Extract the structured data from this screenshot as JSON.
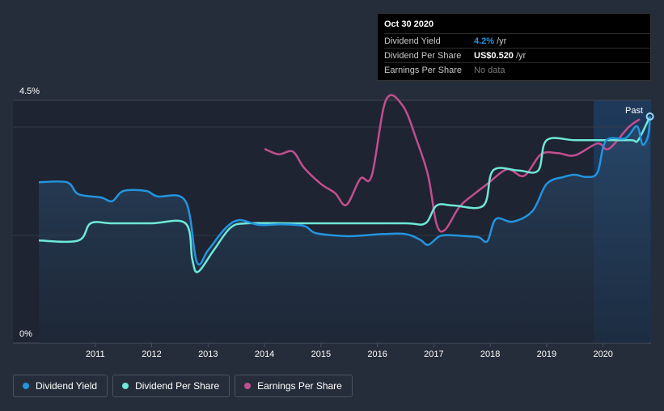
{
  "tooltip": {
    "date": "Oct 30 2020",
    "rows": [
      {
        "name": "Dividend Yield",
        "value": "4.2%",
        "unit": "/yr"
      },
      {
        "name": "Dividend Per Share",
        "value": "US$0.520",
        "unit": "/yr"
      },
      {
        "name": "Earnings Per Share",
        "value": "No data",
        "unit": ""
      }
    ]
  },
  "past_label": "Past",
  "legend": [
    {
      "label": "Dividend Yield",
      "color": "#2394df"
    },
    {
      "label": "Dividend Per Share",
      "color": "#6ee8d7"
    },
    {
      "label": "Earnings Per Share",
      "color": "#c34e8f"
    }
  ],
  "chart_data": {
    "type": "line",
    "y_unit": "%",
    "ylim": [
      0,
      4.5
    ],
    "y_tick_labels": [
      "4.5%",
      "0%"
    ],
    "x_tick_labels": [
      "2011",
      "2012",
      "2013",
      "2014",
      "2015",
      "2016",
      "2017",
      "2018",
      "2019",
      "2020"
    ],
    "xlim": [
      2010.0,
      2020.85
    ],
    "grid": true,
    "colors": {
      "yield": "#2394df",
      "dps": "#6ee8d7",
      "eps": "#c34e8f"
    },
    "series": [
      {
        "name": "Dividend Yield",
        "key": "yield",
        "points": [
          [
            2010.0,
            2.98
          ],
          [
            2010.5,
            2.98
          ],
          [
            2010.7,
            2.76
          ],
          [
            2011.1,
            2.7
          ],
          [
            2011.3,
            2.63
          ],
          [
            2011.5,
            2.82
          ],
          [
            2011.9,
            2.82
          ],
          [
            2012.1,
            2.72
          ],
          [
            2012.6,
            2.63
          ],
          [
            2012.8,
            1.5
          ],
          [
            2013.0,
            1.72
          ],
          [
            2013.3,
            2.12
          ],
          [
            2013.55,
            2.28
          ],
          [
            2013.9,
            2.19
          ],
          [
            2014.3,
            2.2
          ],
          [
            2014.7,
            2.17
          ],
          [
            2014.9,
            2.04
          ],
          [
            2015.3,
            1.99
          ],
          [
            2015.5,
            1.98
          ],
          [
            2015.7,
            1.99
          ],
          [
            2016.1,
            2.02
          ],
          [
            2016.5,
            2.02
          ],
          [
            2016.75,
            1.92
          ],
          [
            2016.9,
            1.82
          ],
          [
            2017.1,
            1.98
          ],
          [
            2017.3,
            2.0
          ],
          [
            2017.6,
            1.98
          ],
          [
            2017.8,
            1.96
          ],
          [
            2017.95,
            1.89
          ],
          [
            2018.1,
            2.3
          ],
          [
            2018.4,
            2.25
          ],
          [
            2018.75,
            2.45
          ],
          [
            2019.0,
            2.95
          ],
          [
            2019.3,
            3.08
          ],
          [
            2019.5,
            3.12
          ],
          [
            2019.7,
            3.08
          ],
          [
            2019.9,
            3.16
          ],
          [
            2020.05,
            3.75
          ],
          [
            2020.4,
            3.8
          ],
          [
            2020.6,
            4.02
          ],
          [
            2020.7,
            3.68
          ],
          [
            2020.8,
            3.85
          ],
          [
            2020.83,
            4.2
          ]
        ]
      },
      {
        "name": "Dividend Per Share",
        "key": "dps",
        "points": [
          [
            2010.0,
            1.9
          ],
          [
            2010.7,
            1.9
          ],
          [
            2010.92,
            2.22
          ],
          [
            2011.3,
            2.22
          ],
          [
            2012.0,
            2.22
          ],
          [
            2012.6,
            2.22
          ],
          [
            2012.72,
            1.55
          ],
          [
            2012.82,
            1.32
          ],
          [
            2013.1,
            1.72
          ],
          [
            2013.4,
            2.14
          ],
          [
            2013.7,
            2.22
          ],
          [
            2014.5,
            2.22
          ],
          [
            2015.5,
            2.22
          ],
          [
            2016.5,
            2.22
          ],
          [
            2016.85,
            2.22
          ],
          [
            2017.05,
            2.55
          ],
          [
            2017.35,
            2.55
          ],
          [
            2017.88,
            2.55
          ],
          [
            2018.05,
            3.2
          ],
          [
            2018.5,
            3.2
          ],
          [
            2018.85,
            3.2
          ],
          [
            2019.0,
            3.76
          ],
          [
            2019.5,
            3.76
          ],
          [
            2020.0,
            3.76
          ],
          [
            2020.5,
            3.76
          ],
          [
            2020.62,
            3.76
          ],
          [
            2020.83,
            4.2
          ]
        ]
      },
      {
        "name": "Earnings Per Share",
        "key": "eps",
        "points": [
          [
            2014.0,
            3.6
          ],
          [
            2014.25,
            3.5
          ],
          [
            2014.5,
            3.55
          ],
          [
            2014.7,
            3.25
          ],
          [
            2015.0,
            2.95
          ],
          [
            2015.25,
            2.78
          ],
          [
            2015.45,
            2.56
          ],
          [
            2015.7,
            3.05
          ],
          [
            2015.9,
            3.1
          ],
          [
            2016.15,
            4.5
          ],
          [
            2016.45,
            4.4
          ],
          [
            2016.7,
            3.75
          ],
          [
            2016.9,
            3.1
          ],
          [
            2017.05,
            2.2
          ],
          [
            2017.2,
            2.1
          ],
          [
            2017.45,
            2.52
          ],
          [
            2017.7,
            2.75
          ],
          [
            2017.95,
            2.95
          ],
          [
            2018.3,
            3.22
          ],
          [
            2018.6,
            3.1
          ],
          [
            2018.9,
            3.5
          ],
          [
            2019.2,
            3.52
          ],
          [
            2019.5,
            3.48
          ],
          [
            2019.9,
            3.7
          ],
          [
            2020.1,
            3.6
          ],
          [
            2020.45,
            4.0
          ],
          [
            2020.65,
            4.15
          ]
        ]
      }
    ]
  }
}
